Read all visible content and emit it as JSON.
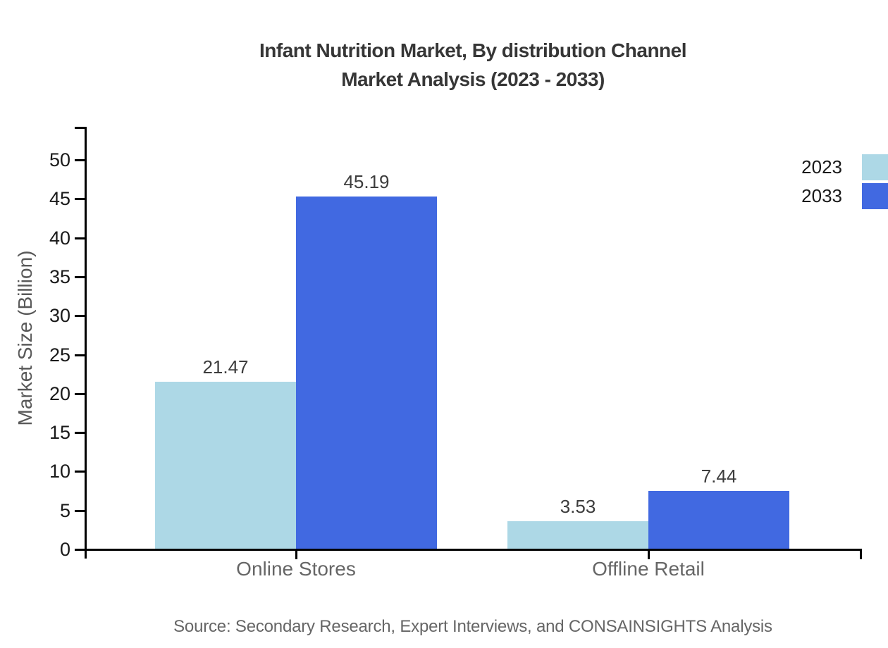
{
  "title": {
    "line1": "Infant Nutrition Market, By distribution Channel",
    "line2": "Market Analysis (2023 - 2033)"
  },
  "chart_data": {
    "type": "bar",
    "categories": [
      "Online Stores",
      "Offline Retail"
    ],
    "series": [
      {
        "name": "2023",
        "color": "#add8e6",
        "values": [
          21.47,
          3.53
        ]
      },
      {
        "name": "2033",
        "color": "#4169e1",
        "values": [
          45.19,
          7.44
        ]
      }
    ],
    "title": "Infant Nutrition Market, By distribution Channel Market Analysis (2023 - 2033)",
    "xlabel": "",
    "ylabel": "Market Size (Billion)",
    "ylim": [
      0,
      50
    ],
    "ytick_step": 5,
    "yticks": [
      0,
      5,
      10,
      15,
      20,
      25,
      30,
      35,
      40,
      45,
      50
    ],
    "grid": false,
    "legend_position": "top-right",
    "value_labels": [
      "21.47",
      "45.19",
      "3.53",
      "7.44"
    ],
    "value_label_decimals": 2
  },
  "source_note": "Source: Secondary Research, Expert Interviews, and CONSAINSIGHTS Analysis",
  "colors": {
    "series_2023": "#add8e6",
    "series_2033": "#4169e1",
    "axis": "#000000",
    "title_text": "#363636",
    "tick_label_text": "#1a1a1a",
    "category_label_text": "#666666",
    "value_label_text": "#3d3d3d",
    "axis_title_text": "#595959",
    "source_text": "#666666",
    "background": "#ffffff"
  }
}
